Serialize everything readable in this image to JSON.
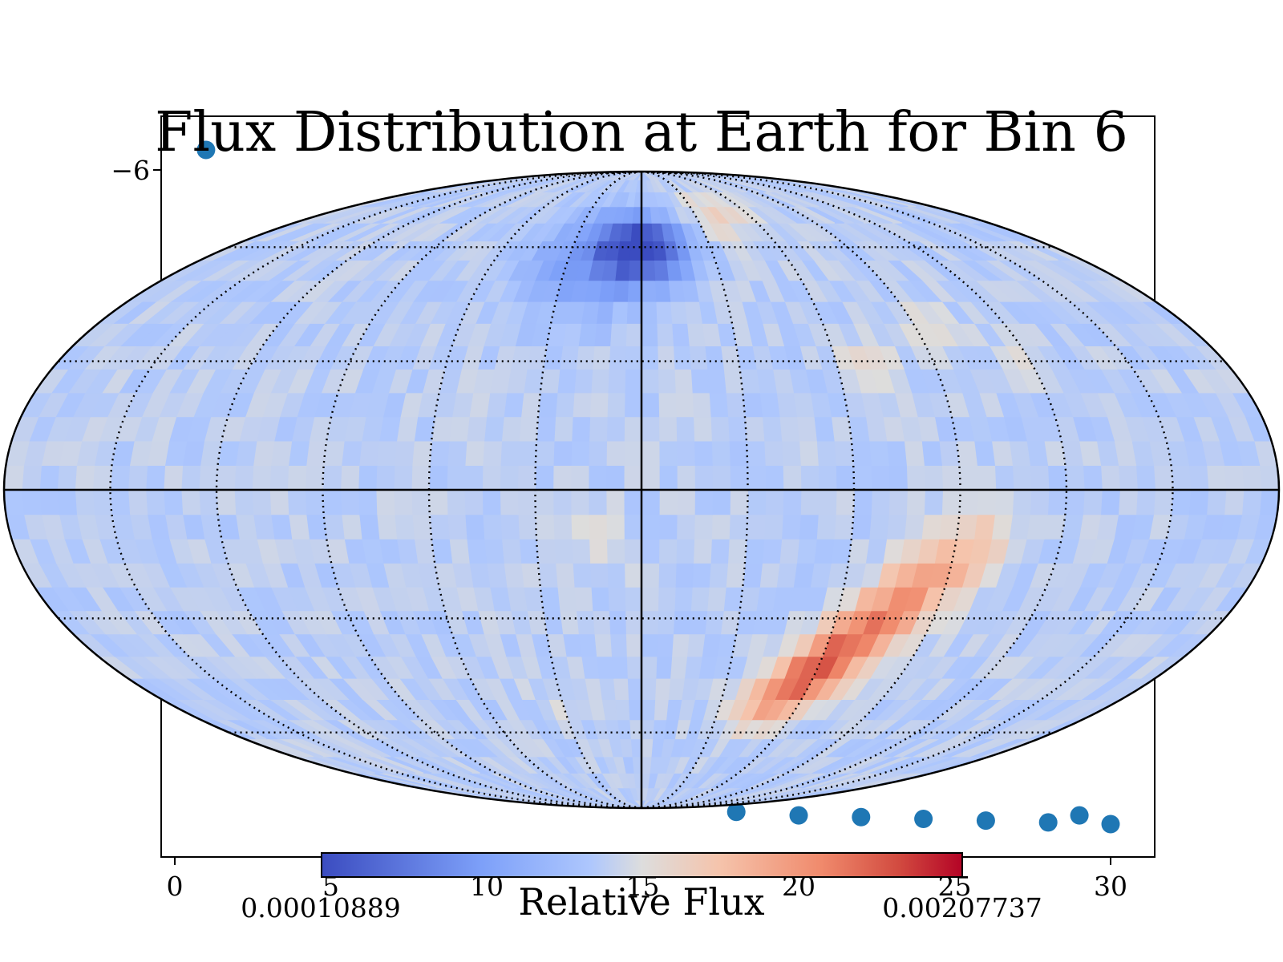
{
  "chart_data": [
    {
      "type": "scatter",
      "x_ticks": [
        "0",
        "5",
        "10",
        "15",
        "20",
        "25",
        "30"
      ],
      "y_ticks": [
        "−6"
      ],
      "xlim": [
        -0.4,
        31.4
      ],
      "marker_color": "#1f77b4",
      "visible_points": [
        {
          "x": 1,
          "y": -6.05
        },
        {
          "x": 18,
          "y": 12.9
        },
        {
          "x": 20,
          "y": 13.0
        },
        {
          "x": 22,
          "y": 13.05
        },
        {
          "x": 24,
          "y": 13.1
        },
        {
          "x": 26,
          "y": 13.15
        },
        {
          "x": 28,
          "y": 13.2
        },
        {
          "x": 29,
          "y": 13.0
        },
        {
          "x": 30,
          "y": 13.25
        }
      ]
    },
    {
      "type": "heatmap",
      "title": "Flux Distribution at Earth for Bin 6",
      "projection": "mollweide",
      "colormap": "coolwarm",
      "colorbar_label": "Relative Flux",
      "colorbar_min": "0.00010889",
      "colorbar_max": "0.00207737",
      "graticule": {
        "meridian_step_deg": 30,
        "parallel_step_deg": 30
      },
      "features": [
        {
          "kind": "low",
          "lon": 0,
          "lat": 60,
          "strength": -1.0
        },
        {
          "kind": "low",
          "lon": 30,
          "lat": 52,
          "strength": -0.55
        },
        {
          "kind": "high",
          "lon": -62,
          "lat": -42,
          "strength": 1.0
        },
        {
          "kind": "high",
          "lon": -80,
          "lat": -22,
          "strength": 0.55
        },
        {
          "kind": "mild-high",
          "lon": -40,
          "lat": 70,
          "strength": 0.35
        },
        {
          "kind": "mild-high",
          "lon": -70,
          "lat": 25,
          "strength": 0.25
        },
        {
          "kind": "mild-high",
          "lon": 15,
          "lat": -12,
          "strength": 0.2
        }
      ]
    }
  ]
}
